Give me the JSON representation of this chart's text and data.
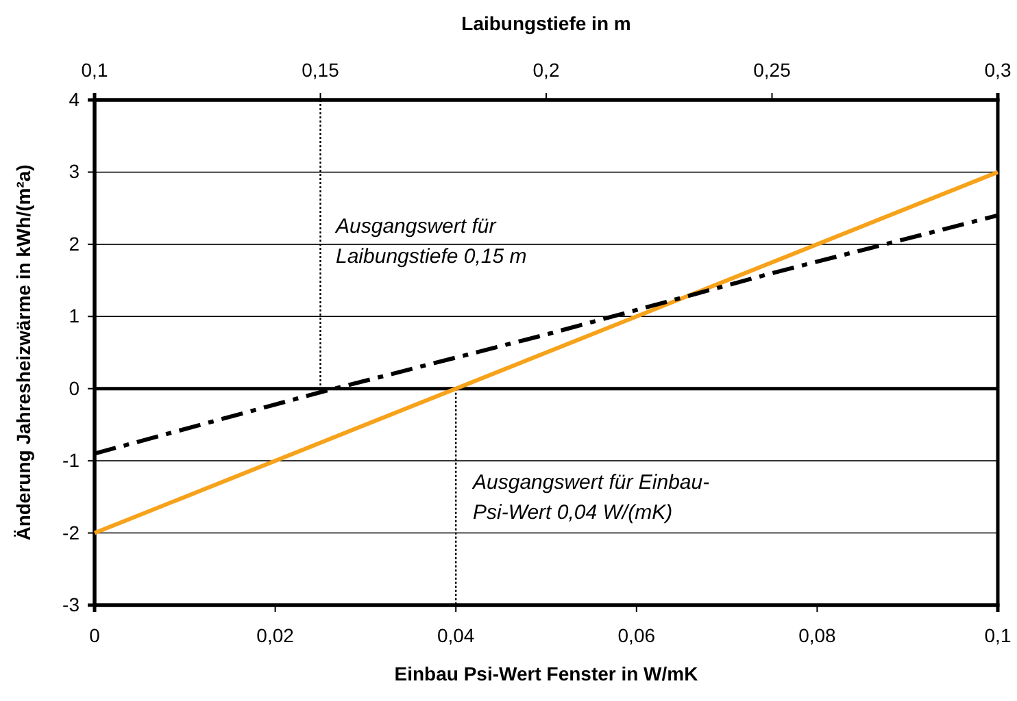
{
  "chart_data": {
    "type": "line",
    "xlabel": "Einbau Psi-Wert Fenster in W/mK",
    "x2label": "Laibungstiefe in m",
    "ylabel": "Änderung Jahresheizwärme in kWh/(m²a)",
    "xlim": [
      0,
      0.1
    ],
    "xticks": [
      {
        "value": 0,
        "label": "0"
      },
      {
        "value": 0.02,
        "label": "0,02"
      },
      {
        "value": 0.04,
        "label": "0,04"
      },
      {
        "value": 0.06,
        "label": "0,06"
      },
      {
        "value": 0.08,
        "label": "0,08"
      },
      {
        "value": 0.1,
        "label": "0,1"
      }
    ],
    "x2lim": [
      0.1,
      0.3
    ],
    "x2ticks": [
      {
        "value": 0.1,
        "label": "0,1"
      },
      {
        "value": 0.15,
        "label": "0,15"
      },
      {
        "value": 0.2,
        "label": "0,2"
      },
      {
        "value": 0.25,
        "label": "0,25"
      },
      {
        "value": 0.3,
        "label": "0,3"
      }
    ],
    "ylim": [
      -3,
      4
    ],
    "yticks": [
      -3,
      -2,
      -1,
      0,
      1,
      2,
      3,
      4
    ],
    "grid": "y",
    "marker": "none",
    "series": [
      {
        "color": "#f7a21b",
        "x": [
          0,
          0.1
        ],
        "values": [
          -2,
          3
        ],
        "line_style": "solid"
      },
      {
        "color": "#000000",
        "axis": "x2",
        "x": [
          0.1,
          0.15,
          0.2,
          0.25,
          0.3
        ],
        "values": [
          -0.9,
          -0.05,
          0.75,
          1.6,
          2.4
        ],
        "line_style": "dashdot"
      }
    ],
    "ref_lines": [
      {
        "axis": "y",
        "value": 0
      },
      {
        "axis": "x2",
        "value": 0.15,
        "line_style": "dotted"
      },
      {
        "axis": "x",
        "value": 0.04,
        "line_style": "dotted"
      }
    ],
    "annotations": [
      "Ausgangswert für Laibungstiefe 0,15 m",
      "Ausgangswert für Einbau-Psi-Wert 0,04 W/(mK)"
    ]
  }
}
